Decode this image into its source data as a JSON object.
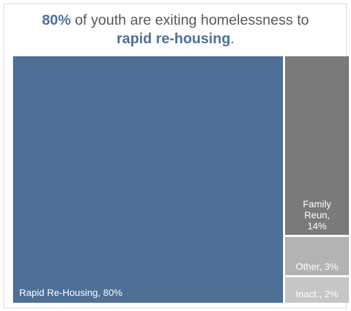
{
  "title": {
    "line1_highlight": "80%",
    "line1_rest": " of youth  are exiting homelessness to",
    "line2_highlight": "rapid re-housing",
    "line2_end": "."
  },
  "chart_data": {
    "type": "treemap",
    "categories": [
      "Rapid Re-Housing",
      "Family Reun",
      "Other",
      "Inact."
    ],
    "values": [
      80,
      14,
      3,
      2
    ],
    "labels": [
      "Rapid Re-Housing, 80%",
      "Family Reun, 14%",
      "Other, 3%",
      "Inact., 2%"
    ],
    "label_lines": [
      [
        "Rapid Re-Housing, 80%"
      ],
      [
        "Family",
        "Reun,",
        "14%"
      ],
      [
        "Other, 3%"
      ],
      [
        "Inact., 2%"
      ]
    ],
    "colors": [
      "#4e6f96",
      "#7a7a7a",
      "#b3b3b3",
      "#c6c6c6"
    ]
  }
}
